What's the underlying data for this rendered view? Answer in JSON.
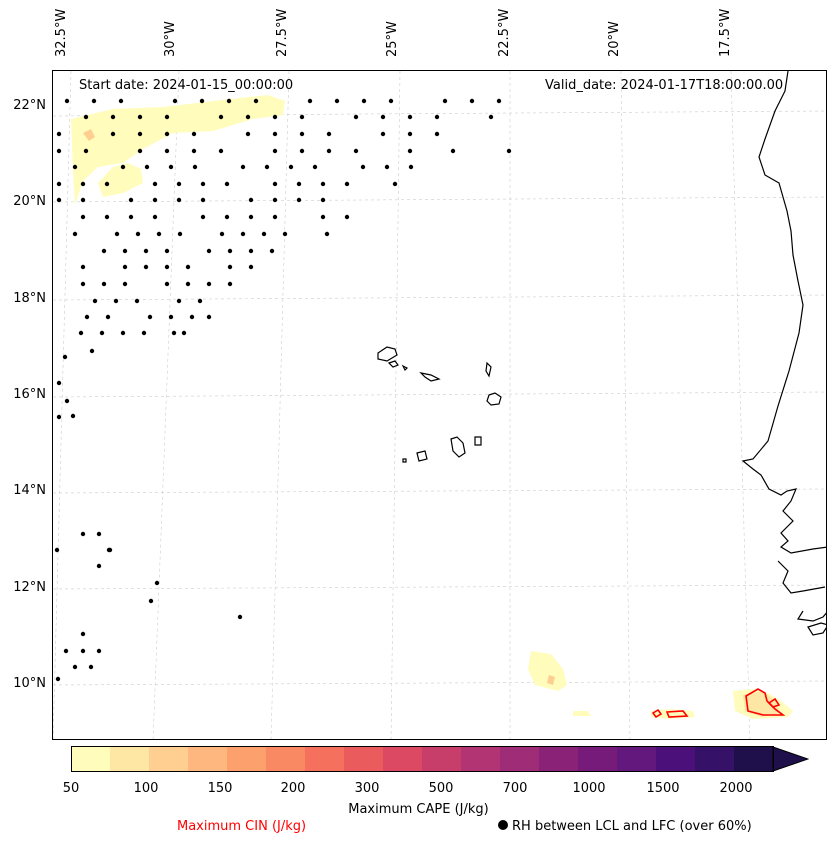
{
  "map": {
    "start_date": "Start date: 2024-01-15_00:00:00",
    "valid_date": "Valid_date: 2024-01-17T18:00:00.00",
    "lon_labels": [
      "32.5°W",
      "30°W",
      "27.5°W",
      "25°W",
      "22.5°W",
      "20°W",
      "17.5°W"
    ],
    "lat_labels": [
      "22°N",
      "20°N",
      "18°N",
      "16°N",
      "14°N",
      "12°N",
      "10°N"
    ],
    "colors": {
      "coastline": "#000000",
      "gridline": "#cccccc",
      "cin_contour": "#ff0000",
      "rh_marker": "#000000"
    }
  },
  "colorbar": {
    "title": "Maximum CAPE (J/kg)",
    "tick_labels": [
      "50",
      "100",
      "150",
      "200",
      "300",
      "500",
      "700",
      "1000",
      "1500",
      "2000"
    ],
    "colors": [
      "#fffcbc",
      "#fee6a4",
      "#fecf91",
      "#feb77e",
      "#fca06d",
      "#f98963",
      "#f5705d",
      "#ea5b5e",
      "#db4a62",
      "#c83e6a",
      "#b33472",
      "#9f2c76",
      "#8a2378",
      "#771b7b",
      "#62187c",
      "#4b107a",
      "#351268",
      "#1f0f4b"
    ],
    "extend": "max"
  },
  "legend": {
    "cin_label": "Maximum CIN (J/kg)",
    "rh_label": "RH between LCL and LFC (over 60%)"
  }
}
